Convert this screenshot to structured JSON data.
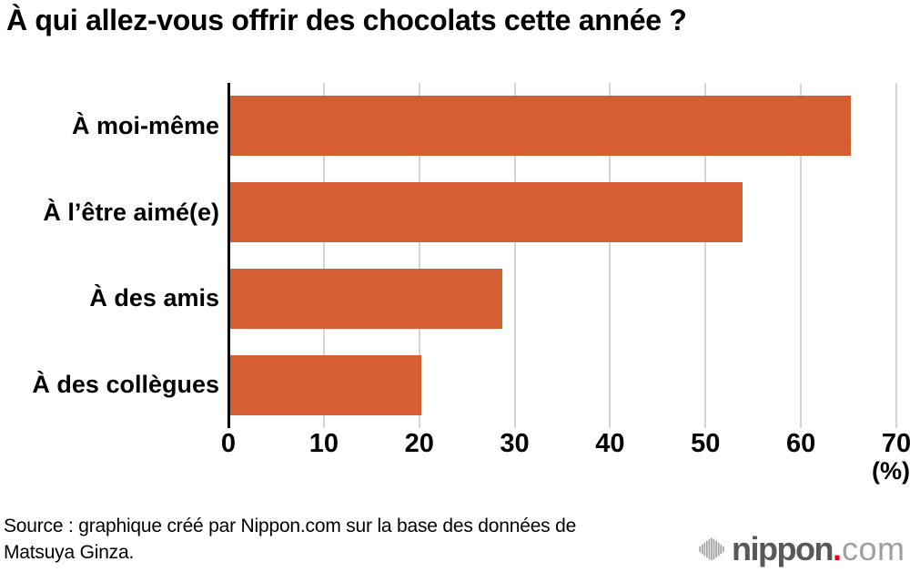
{
  "title": "À qui allez-vous offrir des chocolats cette année ?",
  "chart_data": {
    "type": "bar",
    "orientation": "horizontal",
    "title": "À qui allez-vous offrir des chocolats cette année ?",
    "categories": [
      "À moi-même",
      "À l’être aimé(e)",
      "À des amis",
      "À des collègues"
    ],
    "values": [
      65,
      53.7,
      28.5,
      20
    ],
    "xlim": [
      0,
      70
    ],
    "x_ticks": [
      0,
      10,
      20,
      30,
      40,
      50,
      60,
      70
    ],
    "x_unit_label": "(%)",
    "grid": true,
    "bar_color": "#d55f32",
    "gridline_color": "#d5d5d5",
    "axis_color": "#000000"
  },
  "source": {
    "line1": "Source : graphique créé par Nippon.com sur la base des données de",
    "line2": "Matsuya Ginza."
  },
  "logo": {
    "icon": "sound-wave-icon",
    "name": "nippon",
    "dot": ".",
    "tld": "com",
    "colors": {
      "name": "#595757",
      "dot": "#e60012",
      "tld": "#9fa0a0"
    }
  }
}
